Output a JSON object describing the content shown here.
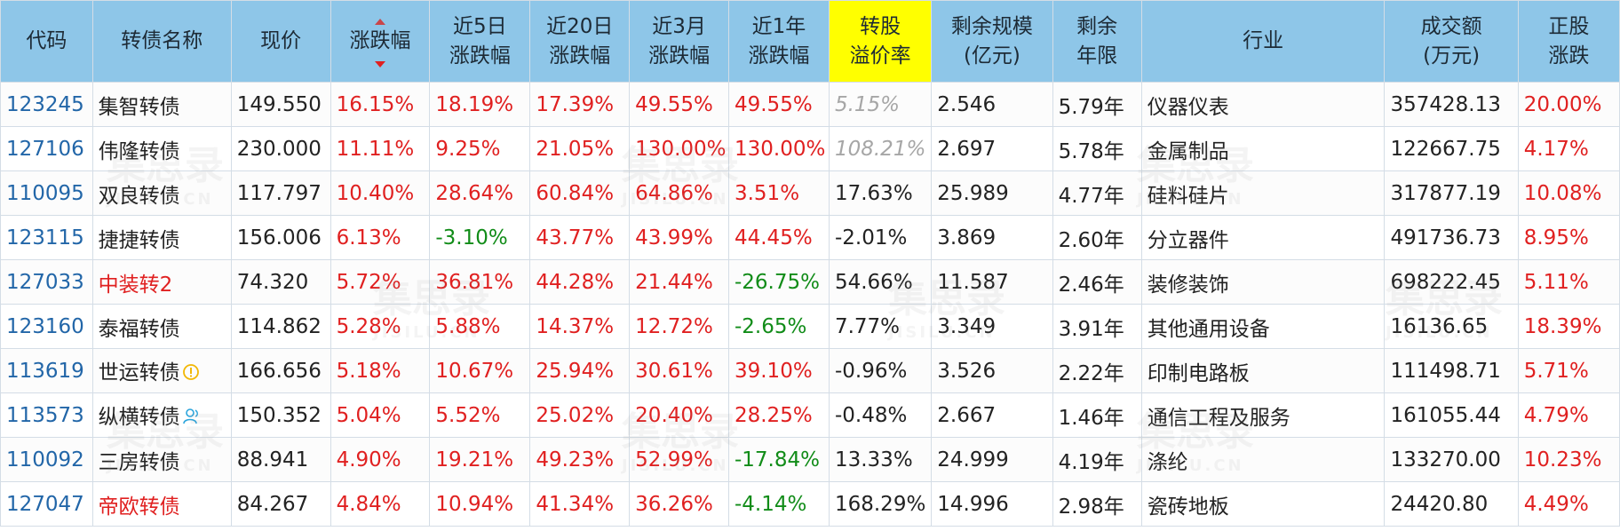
{
  "header": {
    "code": "代码",
    "name": "转债名称",
    "price": "现价",
    "change": "涨跌幅",
    "change_5d": [
      "近5日",
      "涨跌幅"
    ],
    "change_20d": [
      "近20日",
      "涨跌幅"
    ],
    "change_3m": [
      "近3月",
      "涨跌幅"
    ],
    "change_1y": [
      "近1年",
      "涨跌幅"
    ],
    "premium": [
      "转股",
      "溢价率"
    ],
    "remaining_size": [
      "剩余规模",
      "(亿元)"
    ],
    "remaining_years": [
      "剩余",
      "年限"
    ],
    "industry": "行业",
    "turnover": [
      "成交额",
      "(万元)"
    ],
    "stock_change": [
      "正股",
      "涨跌"
    ]
  },
  "colors": {
    "header_bg": "#8ec6e8",
    "highlight_header_bg": "#ffff00",
    "code": "#2266a8",
    "up": "#e02020",
    "down": "#118c18",
    "muted": "#a6a6a6"
  },
  "rows": [
    {
      "code": "123245",
      "name": "集智转债",
      "name_red": false,
      "icon": "",
      "price": "149.550",
      "change": "16.15%",
      "change_5d": "18.19%",
      "change_20d": "17.39%",
      "change_3m": "49.55%",
      "change_1y": "49.55%",
      "premium": "5.15%",
      "premium_style": "gray",
      "remaining_size": "2.546",
      "remaining_years": "5.79年",
      "industry": "仪器仪表",
      "turnover": "357428.13",
      "stock_change": "20.00%"
    },
    {
      "code": "127106",
      "name": "伟隆转债",
      "name_red": false,
      "icon": "",
      "price": "230.000",
      "change": "11.11%",
      "change_5d": "9.25%",
      "change_20d": "21.05%",
      "change_3m": "130.00%",
      "change_1y": "130.00%",
      "premium": "108.21%",
      "premium_style": "gray",
      "remaining_size": "2.697",
      "remaining_years": "5.78年",
      "industry": "金属制品",
      "turnover": "122667.75",
      "stock_change": "4.17%"
    },
    {
      "code": "110095",
      "name": "双良转债",
      "name_red": false,
      "icon": "",
      "price": "117.797",
      "change": "10.40%",
      "change_5d": "28.64%",
      "change_20d": "60.84%",
      "change_3m": "64.86%",
      "change_1y": "3.51%",
      "premium": "17.63%",
      "premium_style": "",
      "remaining_size": "25.989",
      "remaining_years": "4.77年",
      "industry": "硅料硅片",
      "turnover": "317877.19",
      "stock_change": "10.08%"
    },
    {
      "code": "123115",
      "name": "捷捷转债",
      "name_red": false,
      "icon": "",
      "price": "156.006",
      "change": "6.13%",
      "change_5d": "-3.10%",
      "change_20d": "43.77%",
      "change_3m": "43.99%",
      "change_1y": "44.45%",
      "premium": "-2.01%",
      "premium_style": "",
      "remaining_size": "3.869",
      "remaining_years": "2.60年",
      "industry": "分立器件",
      "turnover": "491736.73",
      "stock_change": "8.95%"
    },
    {
      "code": "127033",
      "name": "中装转2",
      "name_red": true,
      "icon": "",
      "price": "74.320",
      "change": "5.72%",
      "change_5d": "36.81%",
      "change_20d": "44.28%",
      "change_3m": "21.44%",
      "change_1y": "-26.75%",
      "premium": "54.66%",
      "premium_style": "",
      "remaining_size": "11.587",
      "remaining_years": "2.46年",
      "industry": "装修装饰",
      "turnover": "698222.45",
      "stock_change": "5.11%"
    },
    {
      "code": "123160",
      "name": "泰福转债",
      "name_red": false,
      "icon": "",
      "price": "114.862",
      "change": "5.28%",
      "change_5d": "5.88%",
      "change_20d": "14.37%",
      "change_3m": "12.72%",
      "change_1y": "-2.65%",
      "premium": "7.77%",
      "premium_style": "",
      "remaining_size": "3.349",
      "remaining_years": "3.91年",
      "industry": "其他通用设备",
      "turnover": "16136.65",
      "stock_change": "18.39%"
    },
    {
      "code": "113619",
      "name": "世运转债",
      "name_red": false,
      "icon": "warning-icon",
      "price": "166.656",
      "change": "5.18%",
      "change_5d": "10.67%",
      "change_20d": "25.94%",
      "change_3m": "30.61%",
      "change_1y": "39.10%",
      "premium": "-0.96%",
      "premium_style": "",
      "remaining_size": "3.526",
      "remaining_years": "2.22年",
      "industry": "印制电路板",
      "turnover": "111498.71",
      "stock_change": "5.71%"
    },
    {
      "code": "113573",
      "name": "纵横转债",
      "name_red": false,
      "icon": "person-icon",
      "price": "150.352",
      "change": "5.04%",
      "change_5d": "5.52%",
      "change_20d": "25.02%",
      "change_3m": "20.40%",
      "change_1y": "28.25%",
      "premium": "-0.48%",
      "premium_style": "",
      "remaining_size": "2.667",
      "remaining_years": "1.46年",
      "industry": "通信工程及服务",
      "turnover": "161055.44",
      "stock_change": "4.79%"
    },
    {
      "code": "110092",
      "name": "三房转债",
      "name_red": false,
      "icon": "",
      "price": "88.941",
      "change": "4.90%",
      "change_5d": "19.21%",
      "change_20d": "49.23%",
      "change_3m": "52.99%",
      "change_1y": "-17.84%",
      "premium": "13.33%",
      "premium_style": "",
      "remaining_size": "24.999",
      "remaining_years": "4.19年",
      "industry": "涤纶",
      "turnover": "133270.00",
      "stock_change": "10.23%"
    },
    {
      "code": "127047",
      "name": "帝欧转债",
      "name_red": true,
      "icon": "",
      "price": "84.267",
      "change": "4.84%",
      "change_5d": "10.94%",
      "change_20d": "41.34%",
      "change_3m": "36.26%",
      "change_1y": "-4.14%",
      "premium": "168.29%",
      "premium_style": "",
      "remaining_size": "14.996",
      "remaining_years": "2.98年",
      "industry": "瓷砖地板",
      "turnover": "24420.80",
      "stock_change": "4.49%"
    }
  ]
}
